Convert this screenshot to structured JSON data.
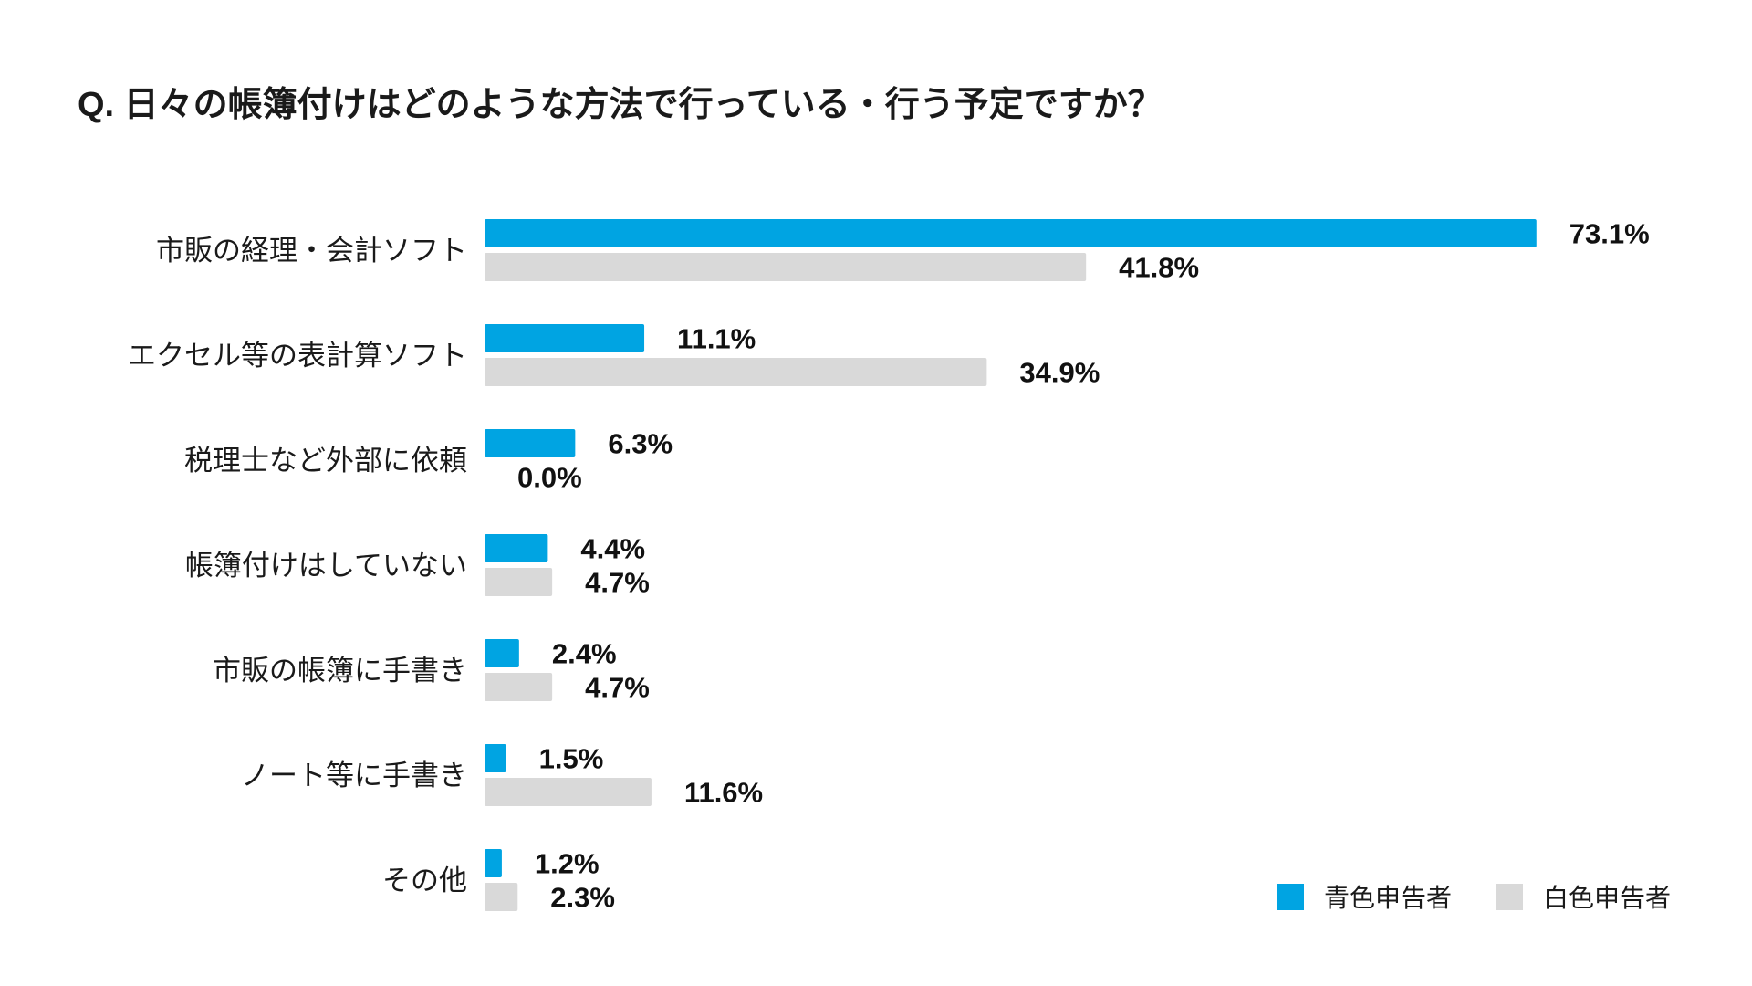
{
  "chart_data": {
    "type": "bar",
    "orientation": "horizontal",
    "title": "Q. 日々の帳簿付けはどのような方法で行っている・行う予定ですか？",
    "xlabel": "",
    "ylabel": "",
    "xlim": [
      0,
      100
    ],
    "unit": "%",
    "grid": false,
    "legend_position": "bottom-right",
    "categories": [
      "市販の経理・会計ソフト",
      "エクセル等の表計算ソフト",
      "税理士など外部に依頼",
      "帳簿付けはしていない",
      "市販の帳簿に手書き",
      "ノート等に手書き",
      "その他"
    ],
    "series": [
      {
        "name": "青色申告者",
        "color": "#00a4e2",
        "values": [
          73.1,
          11.1,
          6.3,
          4.4,
          2.4,
          1.5,
          1.2
        ],
        "labels": [
          "73.1%",
          "11.1%",
          "6.3%",
          "4.4%",
          "2.4%",
          "1.5%",
          "1.2%"
        ]
      },
      {
        "name": "白色申告者",
        "color": "#d9d9d9",
        "values": [
          41.8,
          34.9,
          0.0,
          4.7,
          4.7,
          11.6,
          2.3
        ],
        "labels": [
          "41.8%",
          "34.9%",
          "0.0%",
          "4.7%",
          "4.7%",
          "11.6%",
          "2.3%"
        ]
      }
    ]
  }
}
